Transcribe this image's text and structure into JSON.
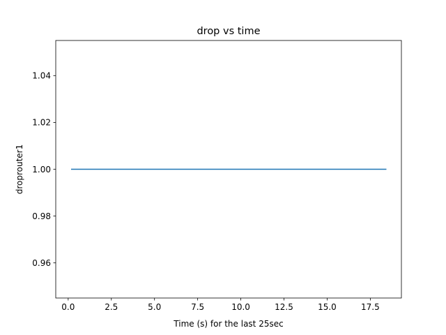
{
  "chart_data": {
    "type": "line",
    "title": "drop vs time",
    "xlabel": "Time (s) for the last 25sec",
    "ylabel": "droprouter1",
    "xlim": [
      -0.72,
      19.3
    ],
    "ylim": [
      0.945,
      1.055
    ],
    "xticks": [
      0.0,
      2.5,
      5.0,
      7.5,
      10.0,
      12.5,
      15.0,
      17.5
    ],
    "xtick_labels": [
      "0.0",
      "2.5",
      "5.0",
      "7.5",
      "10.0",
      "12.5",
      "15.0",
      "17.5"
    ],
    "yticks": [
      0.96,
      0.98,
      1.0,
      1.02,
      1.04
    ],
    "ytick_labels": [
      "0.96",
      "0.98",
      "1.00",
      "1.02",
      "1.04"
    ],
    "grid": false,
    "series": [
      {
        "color": "#1f77b4",
        "x": [
          0.2,
          18.4
        ],
        "y": [
          1.0,
          1.0
        ]
      }
    ]
  }
}
